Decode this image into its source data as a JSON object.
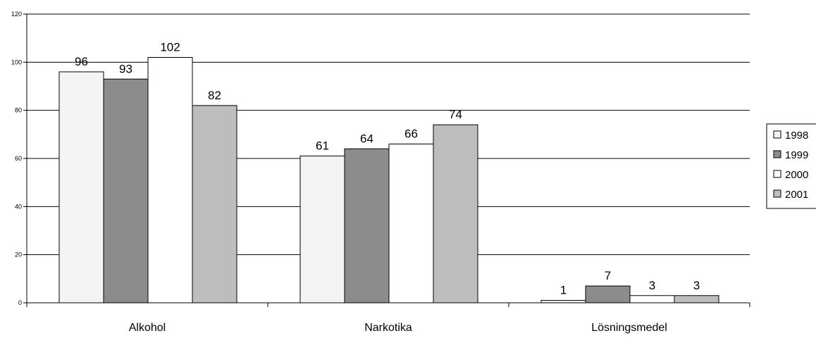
{
  "chart_data": {
    "type": "bar",
    "categories": [
      "Alkohol",
      "Narkotika",
      "Lösningsmedel"
    ],
    "series": [
      {
        "name": "1998",
        "values": [
          96,
          61,
          1
        ],
        "color": "#f4f4f4"
      },
      {
        "name": "1999",
        "values": [
          93,
          64,
          7
        ],
        "color": "#8c8c8c"
      },
      {
        "name": "2000",
        "values": [
          102,
          66,
          3
        ],
        "color": "#ffffff"
      },
      {
        "name": "2001",
        "values": [
          82,
          74,
          3
        ],
        "color": "#bdbdbd"
      }
    ],
    "ylim": [
      0,
      120
    ],
    "yticks": [
      "0",
      "20",
      "40",
      "60",
      "80",
      "100",
      "120"
    ],
    "grid": true,
    "legend_position": "right"
  }
}
